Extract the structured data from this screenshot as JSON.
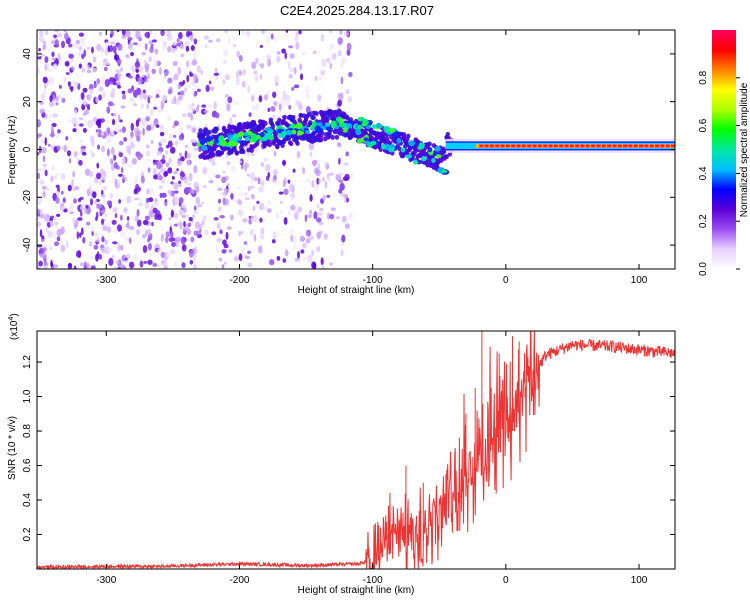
{
  "title": "C2E4.2025.284.13.17.R07",
  "chart_data": [
    {
      "type": "heatmap",
      "name": "spectrogram",
      "xlabel": "Height of straight line (km)",
      "ylabel": "Frequency (Hz)",
      "xlim": [
        -352,
        127
      ],
      "ylim": [
        -50,
        50
      ],
      "xticks": [
        -300,
        -200,
        -100,
        0,
        100
      ],
      "yticks": [
        -40,
        -20,
        0,
        20,
        40
      ],
      "colorbar": {
        "label": "Normalized spectral amplitude",
        "range": [
          0,
          1
        ],
        "ticks": [
          0.0,
          0.2,
          0.4,
          0.6,
          0.8
        ],
        "tick_labels": [
          "0.0",
          "0.2",
          "0.4",
          "0.6",
          "0.8"
        ],
        "stops": [
          "#ffffff",
          "#e8d0ff",
          "#9a4df0",
          "#5a00d8",
          "#0000ff",
          "#00c0ff",
          "#00e8a0",
          "#00ff00",
          "#b0ff00",
          "#ffff00",
          "#ff8000",
          "#ff0000",
          "#ff0060"
        ]
      },
      "features": {
        "noise_region_x": [
          -352,
          -115
        ],
        "band_start_x": -230,
        "band_peak": [
          -125,
          11
        ],
        "converge_x": -45,
        "tone_freq_hz": 1.5,
        "tone_x": [
          -45,
          127
        ]
      }
    },
    {
      "type": "line",
      "name": "snr",
      "xlabel": "Height of straight line (km)",
      "ylabel": "SNR (10 * v/v)",
      "multiplier": "(x10",
      "multiplier_exp": "4",
      "xlim": [
        -352,
        127
      ],
      "ylim": [
        0,
        1.38
      ],
      "xticks": [
        -300,
        -200,
        -100,
        0,
        100
      ],
      "yticks": [
        0.2,
        0.4,
        0.6,
        0.8,
        1.0,
        1.2
      ],
      "ytick_labels": [
        "0.2",
        "0.4",
        "0.6",
        "0.8",
        "1.0",
        "1.2"
      ],
      "color": "#ee3333",
      "profile": [
        [
          -352,
          0.01
        ],
        [
          -300,
          0.015
        ],
        [
          -260,
          0.015
        ],
        [
          -200,
          0.03
        ],
        [
          -150,
          0.02
        ],
        [
          -110,
          0.03
        ],
        [
          -100,
          0.06
        ],
        [
          -90,
          0.15
        ],
        [
          -80,
          0.22
        ],
        [
          -70,
          0.2
        ],
        [
          -60,
          0.28
        ],
        [
          -50,
          0.32
        ],
        [
          -40,
          0.4
        ],
        [
          -30,
          0.52
        ],
        [
          -20,
          0.62
        ],
        [
          -10,
          0.75
        ],
        [
          0,
          0.85
        ],
        [
          10,
          0.95
        ],
        [
          20,
          1.12
        ],
        [
          30,
          1.24
        ],
        [
          50,
          1.3
        ],
        [
          80,
          1.29
        ],
        [
          100,
          1.27
        ],
        [
          127,
          1.25
        ]
      ],
      "spikes": [
        [
          -75,
          0.6
        ],
        [
          -62,
          0.5
        ],
        [
          -45,
          0.55
        ],
        [
          -30,
          0.9
        ],
        [
          -23,
          1.05
        ],
        [
          -18,
          1.38
        ],
        [
          -12,
          1.2
        ],
        [
          -5,
          1.25
        ],
        [
          5,
          1.35
        ],
        [
          10,
          1.32
        ]
      ]
    }
  ]
}
